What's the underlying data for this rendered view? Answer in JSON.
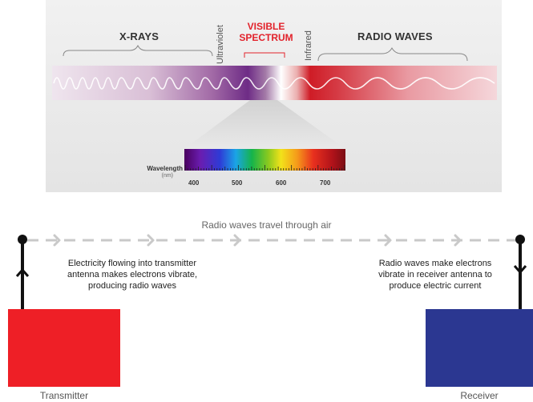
{
  "spectrum": {
    "xrays_label": "X-RAYS",
    "ultraviolet_label": "Ultraviolet",
    "visible_line1": "VISIBLE",
    "visible_line2": "SPECTRUM",
    "infrared_label": "Infrared",
    "radio_label": "RADIO WAVES",
    "wavelength_label": "Wavelength",
    "wavelength_unit": "(nm)",
    "ticks": [
      "400",
      "500",
      "600",
      "700"
    ]
  },
  "diagram": {
    "heading": "Radio waves travel through air",
    "transmitter_caption": [
      "Electricity flowing into transmitter",
      "antenna makes electrons vibrate,",
      "producing radio waves"
    ],
    "receiver_caption": [
      "Radio waves make electrons",
      "vibrate in receiver antenna to",
      "produce electric current"
    ],
    "transmitter_label": "Transmitter",
    "receiver_label": "Receiver",
    "colors": {
      "transmitter": "#ee1f26",
      "receiver": "#2b3791",
      "dashes": "#c9c9c9",
      "visible_text": "#e2222b"
    }
  }
}
